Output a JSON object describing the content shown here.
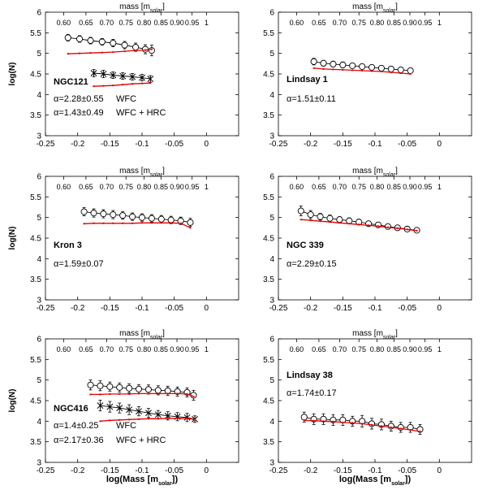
{
  "x_axis_label": "log(Mass [m",
  "x_axis_label_sub": "solar",
  "x_axis_label_end": "])",
  "y_axis_label": "log(N)",
  "top_axis_label": "mass [m",
  "top_axis_label_sub": "solar",
  "top_axis_label_end": "]",
  "top_ticks": [
    {
      "label": "0.60",
      "logm": -0.2218
    },
    {
      "label": "0.65",
      "logm": -0.1871
    },
    {
      "label": "0.70",
      "logm": -0.1549
    },
    {
      "label": "0.75",
      "logm": -0.1249
    },
    {
      "label": "0.80",
      "logm": -0.0969
    },
    {
      "label": "0.85",
      "logm": -0.0706
    },
    {
      "label": "0.90",
      "logm": -0.0458
    },
    {
      "label": "0.95",
      "logm": -0.0223
    },
    {
      "label": "1",
      "logm": 0.0
    }
  ],
  "x_ticks": [
    "-0.25",
    "-0.2",
    "-0.15",
    "-0.1",
    "-0.05",
    "0"
  ],
  "y_ticks": [
    "3",
    "3.5",
    "4",
    "4.5",
    "5",
    "5.5",
    "6"
  ],
  "colors": {
    "observed": "#000000",
    "model": "#e00000"
  },
  "chart_data": [
    {
      "type": "line",
      "name": "NGC121",
      "xlim": [
        -0.25,
        0.05
      ],
      "ylim": [
        3,
        6
      ],
      "annotations": [
        {
          "alpha": "α=2.28±0.55",
          "label": "WFC"
        },
        {
          "alpha": "α=1.43±0.49",
          "label": "WFC + HRC"
        }
      ],
      "series": [
        {
          "marker": "circle",
          "x": [
            -0.215,
            -0.197,
            -0.18,
            -0.162,
            -0.145,
            -0.127,
            -0.11,
            -0.095,
            -0.085
          ],
          "y": [
            5.38,
            5.35,
            5.31,
            5.28,
            5.25,
            5.2,
            5.15,
            5.1,
            5.07
          ],
          "err": [
            0.08,
            0.08,
            0.08,
            0.08,
            0.09,
            0.09,
            0.1,
            0.11,
            0.13
          ]
        },
        {
          "marker": "model",
          "x": [
            -0.215,
            -0.197,
            -0.18,
            -0.162,
            -0.145,
            -0.127,
            -0.11,
            -0.095,
            -0.085
          ],
          "y": [
            4.99,
            5.0,
            5.01,
            5.02,
            5.03,
            5.05,
            5.07,
            5.08,
            5.1
          ]
        },
        {
          "marker": "x",
          "x": [
            -0.175,
            -0.16,
            -0.145,
            -0.13,
            -0.115,
            -0.1,
            -0.087
          ],
          "y": [
            4.52,
            4.5,
            4.47,
            4.45,
            4.43,
            4.41,
            4.38
          ],
          "err": [
            0.09,
            0.09,
            0.08,
            0.08,
            0.08,
            0.08,
            0.08
          ]
        },
        {
          "marker": "model",
          "x": [
            -0.175,
            -0.16,
            -0.145,
            -0.13,
            -0.115,
            -0.1,
            -0.087
          ],
          "y": [
            4.2,
            4.21,
            4.22,
            4.24,
            4.26,
            4.27,
            4.28
          ]
        }
      ]
    },
    {
      "type": "line",
      "name": "Lindsay 1",
      "xlim": [
        -0.25,
        0.05
      ],
      "ylim": [
        3,
        6
      ],
      "annotations": [
        {
          "alpha": "α=1.51±0.11",
          "label": ""
        }
      ],
      "series": [
        {
          "marker": "circle",
          "x": [
            -0.195,
            -0.18,
            -0.165,
            -0.15,
            -0.135,
            -0.12,
            -0.105,
            -0.09,
            -0.075,
            -0.06,
            -0.045
          ],
          "y": [
            4.8,
            4.76,
            4.74,
            4.72,
            4.7,
            4.68,
            4.66,
            4.64,
            4.62,
            4.6,
            4.58
          ],
          "err": [
            0.08,
            0.07,
            0.07,
            0.07,
            0.06,
            0.06,
            0.06,
            0.06,
            0.06,
            0.06,
            0.06
          ]
        },
        {
          "marker": "model",
          "x": [
            -0.195,
            -0.18,
            -0.165,
            -0.15,
            -0.135,
            -0.12,
            -0.105,
            -0.09,
            -0.075,
            -0.06,
            -0.045
          ],
          "y": [
            4.64,
            4.62,
            4.61,
            4.6,
            4.59,
            4.58,
            4.57,
            4.56,
            4.54,
            4.52,
            4.5
          ]
        }
      ]
    },
    {
      "type": "line",
      "name": "Kron 3",
      "xlim": [
        -0.25,
        0.05
      ],
      "ylim": [
        3,
        6
      ],
      "annotations": [
        {
          "alpha": "α=1.59±0.07",
          "label": ""
        }
      ],
      "series": [
        {
          "marker": "circle",
          "x": [
            -0.19,
            -0.175,
            -0.16,
            -0.145,
            -0.13,
            -0.115,
            -0.1,
            -0.085,
            -0.07,
            -0.055,
            -0.04,
            -0.025
          ],
          "y": [
            5.14,
            5.11,
            5.09,
            5.07,
            5.05,
            5.02,
            5.0,
            4.98,
            4.96,
            4.94,
            4.92,
            4.88
          ],
          "err": [
            0.1,
            0.1,
            0.1,
            0.1,
            0.09,
            0.09,
            0.09,
            0.09,
            0.09,
            0.09,
            0.09,
            0.1
          ]
        },
        {
          "marker": "model",
          "x": [
            -0.19,
            -0.175,
            -0.16,
            -0.145,
            -0.13,
            -0.115,
            -0.1,
            -0.085,
            -0.07,
            -0.055,
            -0.04,
            -0.025
          ],
          "y": [
            4.85,
            4.86,
            4.86,
            4.86,
            4.86,
            4.86,
            4.87,
            4.87,
            4.87,
            4.87,
            4.86,
            4.75
          ]
        }
      ]
    },
    {
      "type": "line",
      "name": "NGC 339",
      "xlim": [
        -0.25,
        0.05
      ],
      "ylim": [
        3,
        6
      ],
      "annotations": [
        {
          "alpha": "α=2.29±0.15",
          "label": ""
        }
      ],
      "series": [
        {
          "marker": "circle",
          "x": [
            -0.215,
            -0.2,
            -0.185,
            -0.17,
            -0.155,
            -0.14,
            -0.125,
            -0.11,
            -0.095,
            -0.08,
            -0.065,
            -0.05,
            -0.035
          ],
          "y": [
            5.16,
            5.07,
            5.02,
            4.98,
            4.95,
            4.92,
            4.89,
            4.85,
            4.82,
            4.78,
            4.75,
            4.72,
            4.69
          ],
          "err": [
            0.12,
            0.1,
            0.08,
            0.08,
            0.07,
            0.07,
            0.07,
            0.06,
            0.06,
            0.05,
            0.05,
            0.05,
            0.05
          ]
        },
        {
          "marker": "model",
          "x": [
            -0.215,
            -0.2,
            -0.185,
            -0.17,
            -0.155,
            -0.14,
            -0.125,
            -0.11,
            -0.095,
            -0.08,
            -0.065,
            -0.05,
            -0.035
          ],
          "y": [
            4.95,
            4.93,
            4.91,
            4.89,
            4.87,
            4.85,
            4.83,
            4.81,
            4.79,
            4.76,
            4.74,
            4.71,
            4.68
          ]
        }
      ]
    },
    {
      "type": "line",
      "name": "NGC416",
      "xlim": [
        -0.25,
        0.05
      ],
      "ylim": [
        3,
        6
      ],
      "annotations": [
        {
          "alpha": "α=1.4±0.25",
          "label": "WFC"
        },
        {
          "alpha": "α=2.17±0.36",
          "label": "WFC + HRC"
        }
      ],
      "series": [
        {
          "marker": "circle",
          "x": [
            -0.18,
            -0.165,
            -0.15,
            -0.135,
            -0.12,
            -0.105,
            -0.09,
            -0.075,
            -0.06,
            -0.045,
            -0.03,
            -0.02
          ],
          "y": [
            4.88,
            4.86,
            4.84,
            4.82,
            4.8,
            4.78,
            4.77,
            4.75,
            4.74,
            4.72,
            4.7,
            4.63
          ],
          "err": [
            0.12,
            0.12,
            0.11,
            0.11,
            0.11,
            0.11,
            0.11,
            0.11,
            0.11,
            0.11,
            0.11,
            0.12
          ]
        },
        {
          "marker": "model",
          "x": [
            -0.18,
            -0.165,
            -0.15,
            -0.135,
            -0.12,
            -0.105,
            -0.09,
            -0.075,
            -0.06,
            -0.045,
            -0.03,
            -0.02
          ],
          "y": [
            4.65,
            4.65,
            4.66,
            4.66,
            4.66,
            4.67,
            4.67,
            4.67,
            4.67,
            4.67,
            4.66,
            4.6
          ]
        },
        {
          "marker": "x",
          "x": [
            -0.165,
            -0.15,
            -0.135,
            -0.12,
            -0.105,
            -0.09,
            -0.075,
            -0.06,
            -0.045,
            -0.03,
            -0.018
          ],
          "y": [
            4.38,
            4.35,
            4.32,
            4.28,
            4.24,
            4.2,
            4.16,
            4.13,
            4.11,
            4.09,
            4.05
          ],
          "err": [
            0.13,
            0.13,
            0.12,
            0.12,
            0.11,
            0.11,
            0.1,
            0.1,
            0.1,
            0.1,
            0.08
          ]
        },
        {
          "marker": "model",
          "x": [
            -0.165,
            -0.15,
            -0.135,
            -0.12,
            -0.105,
            -0.09,
            -0.075,
            -0.06,
            -0.045,
            -0.03,
            -0.018
          ],
          "y": [
            4.0,
            4.02,
            4.03,
            4.04,
            4.05,
            4.06,
            4.06,
            4.07,
            4.07,
            4.07,
            4.04
          ]
        }
      ]
    },
    {
      "type": "line",
      "name": "Lindsay 38",
      "xlim": [
        -0.25,
        0.05
      ],
      "ylim": [
        3,
        6
      ],
      "annotations": [
        {
          "alpha": "α=1.74±0.17",
          "label": ""
        }
      ],
      "series": [
        {
          "marker": "circle",
          "x": [
            -0.21,
            -0.195,
            -0.18,
            -0.165,
            -0.15,
            -0.135,
            -0.12,
            -0.105,
            -0.09,
            -0.075,
            -0.06,
            -0.045,
            -0.03
          ],
          "y": [
            4.1,
            4.05,
            4.05,
            4.03,
            4.03,
            4.0,
            4.0,
            3.94,
            3.92,
            3.88,
            3.85,
            3.85,
            3.8
          ],
          "err": [
            0.12,
            0.13,
            0.13,
            0.13,
            0.13,
            0.12,
            0.14,
            0.13,
            0.13,
            0.12,
            0.12,
            0.12,
            0.12
          ]
        },
        {
          "marker": "model",
          "x": [
            -0.21,
            -0.195,
            -0.18,
            -0.165,
            -0.15,
            -0.135,
            -0.12,
            -0.105,
            -0.09,
            -0.075,
            -0.06,
            -0.045,
            -0.03
          ],
          "y": [
            4.02,
            4.01,
            4.0,
            3.99,
            3.97,
            3.96,
            3.94,
            3.91,
            3.88,
            3.85,
            3.82,
            3.79,
            3.75
          ]
        }
      ]
    }
  ]
}
